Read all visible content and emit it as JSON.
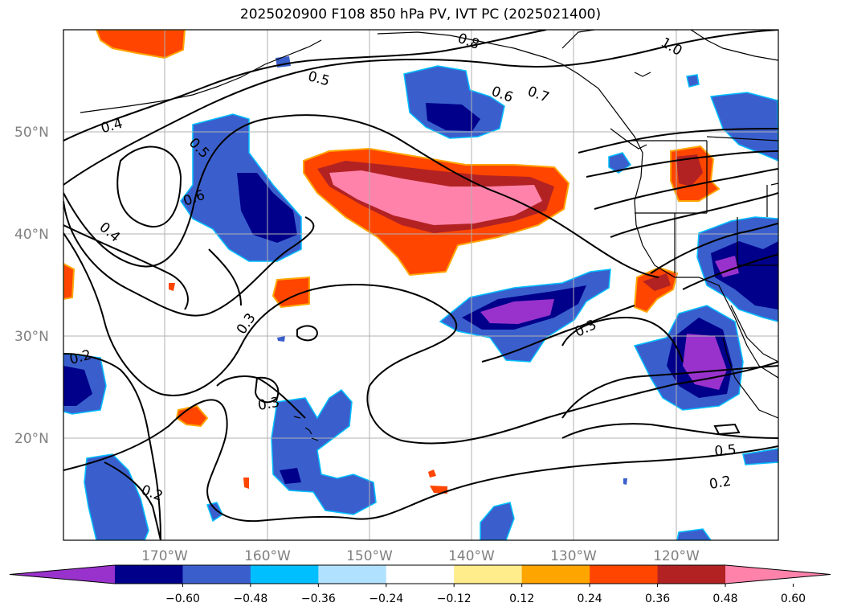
{
  "title": "2025020900 F108 850 hPa PV, IVT PC (2025021400)",
  "lat_ticks": [
    "50°N",
    "40°N",
    "30°N",
    "20°N"
  ],
  "lon_ticks": [
    "170°W",
    "160°W",
    "150°W",
    "140°W",
    "130°W",
    "120°W"
  ],
  "colorbar": {
    "colors": [
      "#9932cc",
      "#00008b",
      "#3a5fcd",
      "#00bfff",
      "#b0e2ff",
      "#ffffff",
      "#ffec8b",
      "#ffa500",
      "#ff4500",
      "#b22222",
      "#ff82ab"
    ],
    "tick_labels": [
      "−0.60",
      "−0.48",
      "−0.36",
      "−0.24",
      "−0.12",
      "0.12",
      "0.24",
      "0.36",
      "0.48",
      "0.60"
    ]
  },
  "contour_labels": [
    "0.8",
    "1.0",
    "0.5",
    "0.6",
    "0.7",
    "0.4",
    "0.5",
    "0.6",
    "0.4",
    "0.3",
    "0.3",
    "0.2",
    "0.3",
    "0.2",
    "0.5",
    "0.2"
  ]
}
